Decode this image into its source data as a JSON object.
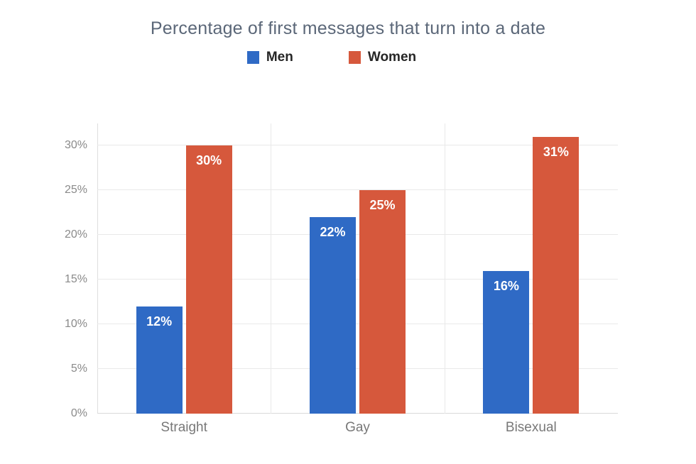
{
  "chart_data": {
    "type": "bar",
    "title": "Percentage of first messages that turn into a date",
    "categories": [
      "Straight",
      "Gay",
      "Bisexual"
    ],
    "series": [
      {
        "name": "Men",
        "color": "#2f6ac5",
        "values": [
          12,
          22,
          16
        ]
      },
      {
        "name": "Women",
        "color": "#d6583c",
        "values": [
          30,
          25,
          31
        ]
      }
    ],
    "bar_label_suffix": "%",
    "yticks": [
      0,
      5,
      10,
      15,
      20,
      25,
      30
    ],
    "ytick_labels": [
      "0%",
      "5%",
      "10%",
      "15%",
      "20%",
      "25%",
      "30%"
    ],
    "ylim": [
      0,
      32.5
    ],
    "grid": true,
    "legend_position": "top-center",
    "xlabel": "",
    "ylabel": ""
  },
  "colors": {
    "background": "#ffffff",
    "title_text": "#5b6778",
    "legend_text": "#262626",
    "ytick_text": "#8a8a8a",
    "xtick_text": "#787878",
    "bar_value_text": "#ffffff",
    "gridline": "#e9e9e9",
    "baseline": "#d9d9d9",
    "axis_line": "#dedede"
  }
}
